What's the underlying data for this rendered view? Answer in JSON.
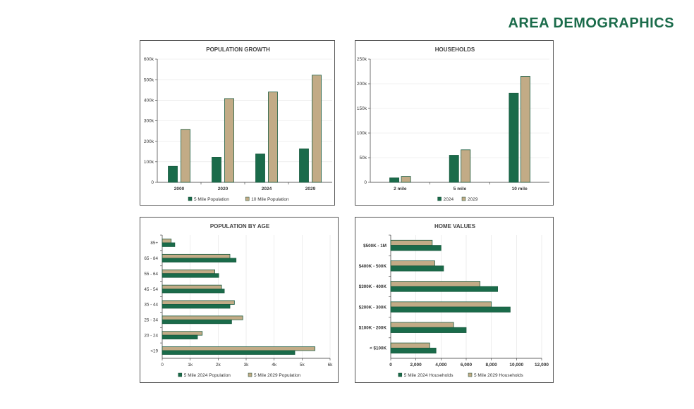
{
  "page": {
    "title": "AREA DEMOGRAPHICS"
  },
  "colors": {
    "green": "#1a6b4a",
    "tan": "#c2ab86",
    "accent": "#1a6b4a"
  },
  "chart_data": [
    {
      "id": "population-growth",
      "type": "bar",
      "title": "POPULATION GROWTH",
      "categories": [
        "2000",
        "2020",
        "2024",
        "2029"
      ],
      "series": [
        {
          "name": "5 Mile Population",
          "color": "#1a6b4a",
          "values": [
            78000,
            122000,
            138000,
            163000
          ]
        },
        {
          "name": "10 Mile Population",
          "color": "#c2ab86",
          "values": [
            258000,
            408000,
            440000,
            522000
          ]
        }
      ],
      "ylim": [
        0,
        600000
      ],
      "yticks": [
        0,
        100000,
        200000,
        300000,
        400000,
        500000,
        600000
      ],
      "ytick_labels": [
        "0",
        "100k",
        "200k",
        "300k",
        "400k",
        "500k",
        "600k"
      ],
      "xlabel": "",
      "ylabel": "",
      "grid": true,
      "legend": "bottom"
    },
    {
      "id": "households",
      "type": "bar",
      "title": "HOUSEHOLDS",
      "categories": [
        "2 mile",
        "5 mile",
        "10 mile"
      ],
      "series": [
        {
          "name": "2024",
          "color": "#1a6b4a",
          "values": [
            9000,
            55000,
            181000
          ]
        },
        {
          "name": "2029",
          "color": "#c2ab86",
          "values": [
            12000,
            66000,
            215000
          ]
        }
      ],
      "ylim": [
        0,
        250000
      ],
      "yticks": [
        0,
        50000,
        100000,
        150000,
        200000,
        250000
      ],
      "ytick_labels": [
        "0",
        "50k",
        "100k",
        "150k",
        "200k",
        "250k"
      ],
      "xlabel": "",
      "ylabel": "",
      "grid": true,
      "legend": "bottom"
    },
    {
      "id": "population-by-age",
      "type": "bar",
      "orientation": "horizontal",
      "title": "POPULATION BY AGE",
      "categories": [
        "85+",
        "65 - 84",
        "55 - 64",
        "45 - 54",
        "35 - 44",
        "25 - 34",
        "20 - 24",
        "<19"
      ],
      "series": [
        {
          "name": "5 Mile 2024 Population",
          "color": "#1a6b4a",
          "values": [
            450,
            2640,
            2020,
            2220,
            2420,
            2480,
            1260,
            4740
          ]
        },
        {
          "name": "5 Mile 2029 Population",
          "color": "#c2ab86",
          "values": [
            320,
            2420,
            1880,
            2120,
            2580,
            2880,
            1430,
            5460
          ]
        }
      ],
      "xlim": [
        0,
        6000
      ],
      "xticks": [
        0,
        1000,
        2000,
        3000,
        4000,
        5000,
        6000
      ],
      "xtick_labels": [
        "0",
        "1k",
        "2k",
        "3k",
        "4k",
        "5k",
        "6k"
      ],
      "xlabel": "",
      "ylabel": "",
      "grid": true,
      "legend": "bottom"
    },
    {
      "id": "home-values",
      "type": "bar",
      "orientation": "horizontal",
      "title": "HOME VALUES",
      "categories": [
        "$500K - 1M",
        "$400K - 500K",
        "$300K - 400K",
        "$200K - 300K",
        "$100K - 200K",
        "< $100K"
      ],
      "series": [
        {
          "name": "5 Mile 2024 Households",
          "color": "#1a6b4a",
          "values": [
            4000,
            4200,
            8500,
            9500,
            6000,
            3600
          ]
        },
        {
          "name": "5 Mile 2029 Households",
          "color": "#c2ab86",
          "values": [
            3300,
            3500,
            7100,
            8000,
            5000,
            3100
          ]
        }
      ],
      "xlim": [
        0,
        12000
      ],
      "xticks": [
        0,
        2000,
        4000,
        6000,
        8000,
        10000,
        12000
      ],
      "xtick_labels": [
        "0",
        "2,000",
        "4,000",
        "6,000",
        "8,000",
        "10,000",
        "12,000"
      ],
      "xlabel": "",
      "ylabel": "",
      "grid": true,
      "legend": "bottom"
    }
  ]
}
